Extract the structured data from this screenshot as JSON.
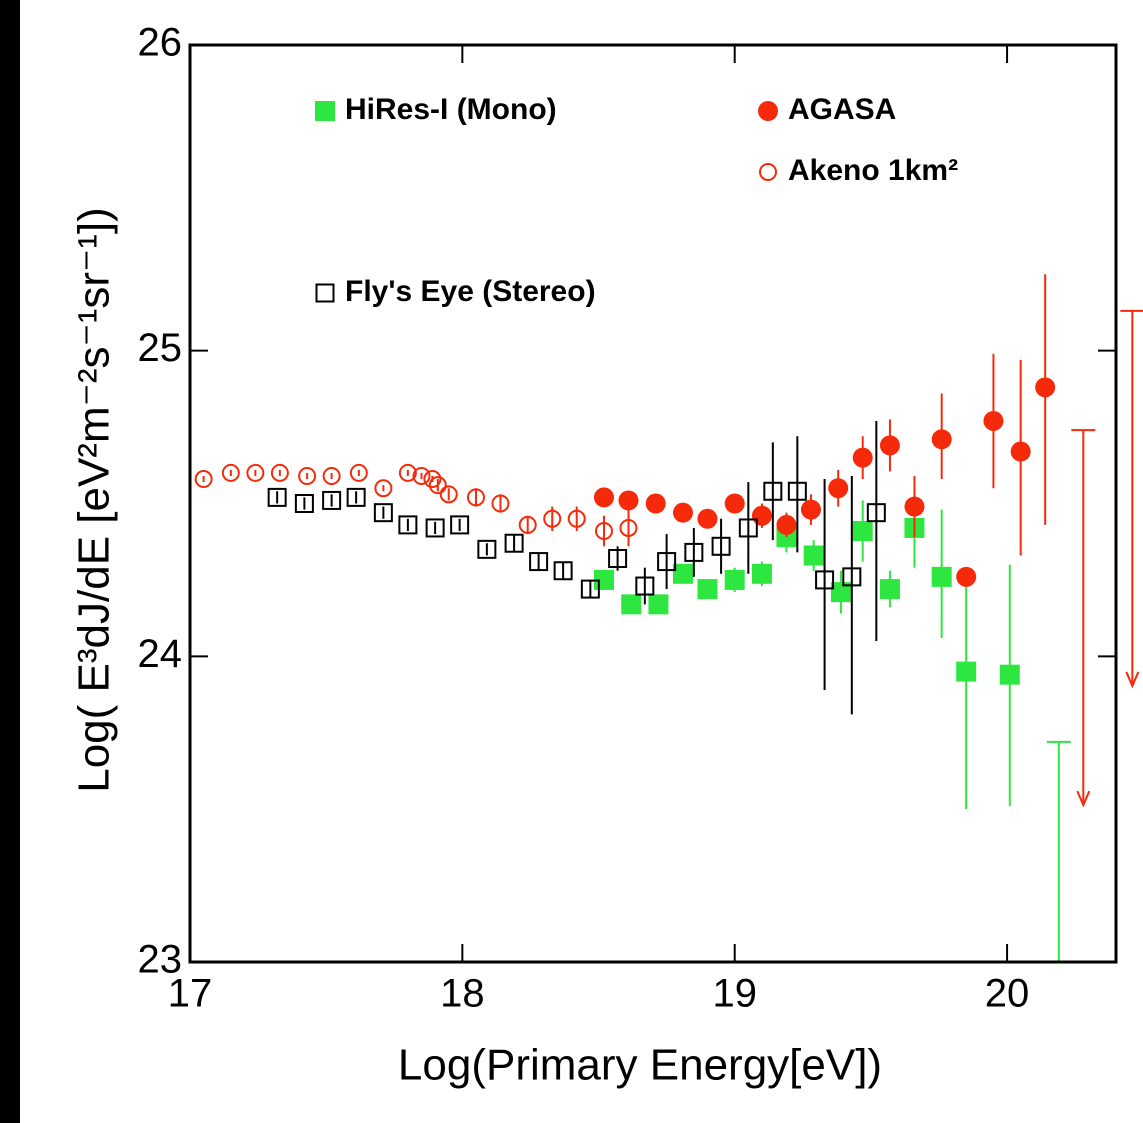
{
  "chart_data": {
    "type": "scatter",
    "xlabel": "Log(Primary Energy[eV])",
    "ylabel": "Log( E³dJ/dE [eV²m⁻²s⁻¹sr⁻¹])",
    "xlim": [
      17,
      20.4
    ],
    "ylim": [
      23,
      26
    ],
    "xticks": [
      17,
      18,
      19,
      20
    ],
    "yticks": [
      23,
      24,
      25,
      26
    ],
    "series": [
      {
        "name": "HiRes-I (Mono)",
        "color": "#2ee640",
        "marker": "filled-square",
        "x": [
          18.52,
          18.62,
          18.72,
          18.81,
          18.9,
          19.0,
          19.1,
          19.19,
          19.29,
          19.39,
          19.47,
          19.57,
          19.66,
          19.76,
          19.85,
          20.01
        ],
        "values": [
          24.25,
          24.17,
          24.17,
          24.27,
          24.22,
          24.25,
          24.27,
          24.39,
          24.33,
          24.21,
          24.41,
          24.22,
          24.42,
          24.26,
          23.95,
          23.94
        ],
        "err_minus": [
          0.03,
          0.03,
          0.03,
          0.03,
          0.03,
          0.04,
          0.04,
          0.05,
          0.05,
          0.07,
          0.1,
          0.06,
          0.13,
          0.2,
          0.45,
          0.43
        ],
        "err_plus": [
          0.03,
          0.03,
          0.03,
          0.03,
          0.03,
          0.04,
          0.04,
          0.05,
          0.05,
          0.07,
          0.1,
          0.06,
          0.13,
          0.22,
          0.33,
          0.36
        ],
        "upper_limits": {
          "x": [
            20.19
          ],
          "values": [
            23.72
          ]
        }
      },
      {
        "name": "AGASA",
        "color": "#f52a0a",
        "marker": "filled-circle",
        "x": [
          18.52,
          18.61,
          18.71,
          18.81,
          18.9,
          19.0,
          19.1,
          19.19,
          19.28,
          19.38,
          19.47,
          19.57,
          19.66,
          19.76,
          19.85,
          19.95,
          20.05,
          20.14
        ],
        "values": [
          24.52,
          24.51,
          24.5,
          24.47,
          24.45,
          24.5,
          24.46,
          24.43,
          24.48,
          24.55,
          24.65,
          24.69,
          24.49,
          24.71,
          24.26,
          24.77,
          24.67,
          24.88
        ],
        "err_minus": [
          0.02,
          0.02,
          0.02,
          0.03,
          0.03,
          0.03,
          0.04,
          0.04,
          0.05,
          0.06,
          0.07,
          0.085,
          0.1,
          0.13,
          0.0,
          0.22,
          0.34,
          0.45
        ],
        "err_plus": [
          0.02,
          0.02,
          0.02,
          0.03,
          0.03,
          0.03,
          0.04,
          0.04,
          0.05,
          0.06,
          0.07,
          0.085,
          0.1,
          0.15,
          0.0,
          0.22,
          0.3,
          0.37
        ],
        "upper_limits": {
          "x": [
            20.28,
            20.46
          ],
          "values": [
            24.74,
            25.13
          ]
        }
      },
      {
        "name": "Akeno 1km²",
        "color": "#f52a0a",
        "marker": "open-circle",
        "x": [
          17.05,
          17.15,
          17.24,
          17.33,
          17.43,
          17.52,
          17.62,
          17.71,
          17.8,
          17.85,
          17.89,
          17.91,
          17.95,
          18.05,
          18.14,
          18.24,
          18.33,
          18.42,
          18.52,
          18.61
        ],
        "values": [
          24.58,
          24.6,
          24.6,
          24.6,
          24.59,
          24.59,
          24.6,
          24.55,
          24.6,
          24.59,
          24.58,
          24.56,
          24.53,
          24.52,
          24.5,
          24.43,
          24.45,
          24.45,
          24.41,
          24.42
        ],
        "err_minus": [
          0.01,
          0.01,
          0.01,
          0.01,
          0.01,
          0.01,
          0.01,
          0.01,
          0.01,
          0.01,
          0.01,
          0.02,
          0.02,
          0.03,
          0.03,
          0.03,
          0.04,
          0.04,
          0.05,
          0.06
        ],
        "err_plus": [
          0.01,
          0.01,
          0.01,
          0.01,
          0.01,
          0.01,
          0.01,
          0.01,
          0.01,
          0.01,
          0.01,
          0.02,
          0.02,
          0.03,
          0.03,
          0.03,
          0.04,
          0.04,
          0.05,
          0.06
        ]
      },
      {
        "name": "Fly's Eye (Stereo)",
        "color": "#000000",
        "marker": "open-square",
        "x": [
          17.32,
          17.42,
          17.52,
          17.61,
          17.71,
          17.8,
          17.9,
          17.99,
          18.09,
          18.19,
          18.28,
          18.37,
          18.47,
          18.57,
          18.67,
          18.75,
          18.85,
          18.95,
          19.05,
          19.14,
          19.23,
          19.33,
          19.43,
          19.52
        ],
        "values": [
          24.52,
          24.5,
          24.51,
          24.52,
          24.47,
          24.43,
          24.42,
          24.43,
          24.35,
          24.37,
          24.31,
          24.28,
          24.22,
          24.32,
          24.23,
          24.31,
          24.34,
          24.36,
          24.42,
          24.54,
          24.54,
          24.25,
          24.26,
          24.47
        ],
        "err_minus": [
          0.02,
          0.02,
          0.02,
          0.02,
          0.02,
          0.02,
          0.02,
          0.02,
          0.02,
          0.03,
          0.03,
          0.03,
          0.03,
          0.04,
          0.06,
          0.09,
          0.08,
          0.09,
          0.15,
          0.16,
          0.2,
          0.36,
          0.45,
          0.42
        ],
        "err_plus": [
          0.02,
          0.02,
          0.02,
          0.02,
          0.02,
          0.02,
          0.02,
          0.02,
          0.02,
          0.03,
          0.03,
          0.03,
          0.03,
          0.04,
          0.06,
          0.09,
          0.08,
          0.09,
          0.15,
          0.16,
          0.18,
          0.33,
          0.33,
          0.3
        ]
      }
    ]
  }
}
